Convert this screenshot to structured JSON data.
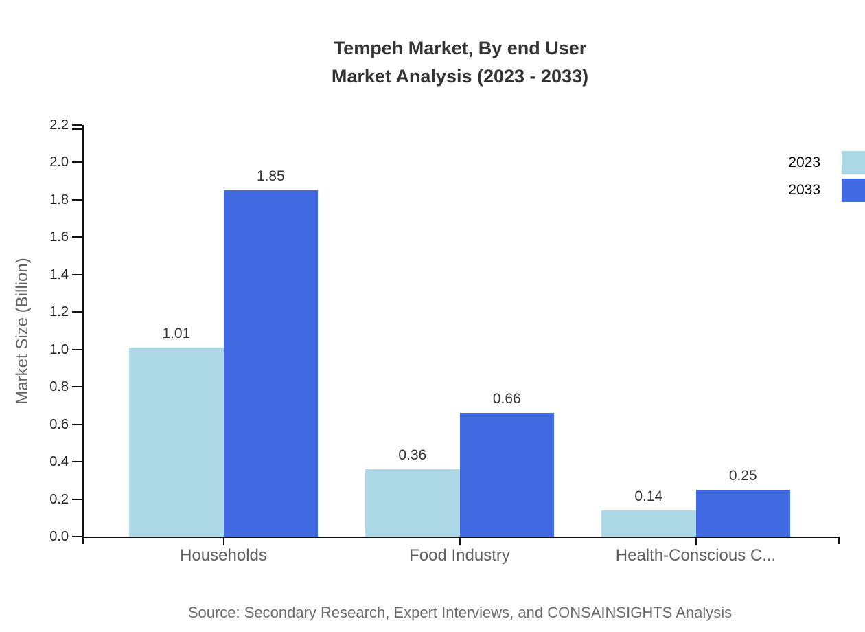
{
  "chart": {
    "title_line1": "Tempeh Market, By end User",
    "title_line2": "Market Analysis (2023 - 2033)",
    "y_axis_label": "Market Size (Billion)",
    "source": "Source: Secondary Research, Expert Interviews, and CONSAINSIGHTS Analysis"
  },
  "chart_data": {
    "type": "bar",
    "title": "Tempeh Market, By end User Market Analysis (2023 - 2033)",
    "categories": [
      "Households",
      "Food Industry",
      "Health-Conscious C..."
    ],
    "series": [
      {
        "name": "2023",
        "color": "#ADD8E6",
        "values": [
          1.01,
          0.36,
          0.14
        ]
      },
      {
        "name": "2033",
        "color": "#4169E1",
        "values": [
          1.85,
          0.66,
          0.25
        ]
      }
    ],
    "value_labels": [
      "1.01",
      "1.85",
      "0.36",
      "0.66",
      "0.14",
      "0.25"
    ],
    "xlabel": "",
    "ylabel": "Market Size (Billion)",
    "ylim": [
      0,
      2.2
    ],
    "ytick_labels": [
      "0.0",
      "0.2",
      "0.4",
      "0.6",
      "0.8",
      "1.0",
      "1.2",
      "1.4",
      "1.6",
      "1.8",
      "2.0",
      "2.2"
    ],
    "grid": false,
    "legend_position": "top-right",
    "axis_color": "#111111",
    "label_color": "#333333"
  }
}
